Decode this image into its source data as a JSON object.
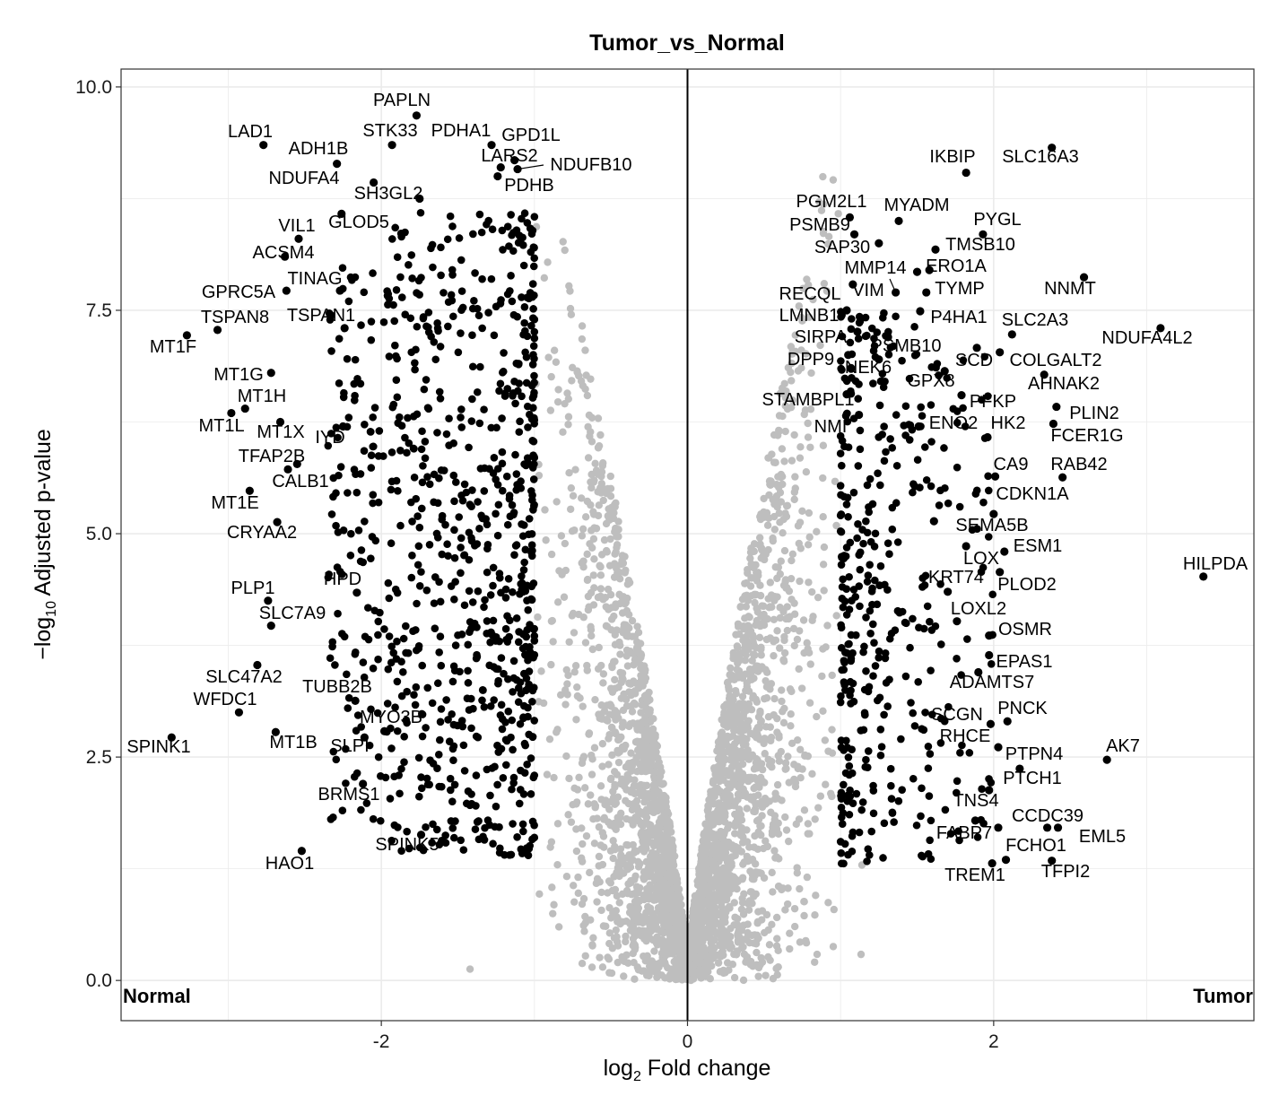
{
  "chart_data": {
    "type": "scatter",
    "title": "Tumor_vs_Normal",
    "xlabel": {
      "prefix": "log",
      "sub": "2",
      "suffix": " Fold change"
    },
    "ylabel": {
      "prefix": "−log",
      "sub": "10",
      "suffix": " Adjusted p-value"
    },
    "xlim": [
      -3.7,
      3.7
    ],
    "ylim": [
      -0.45,
      10.2
    ],
    "x_ticks": [
      -2,
      0,
      2
    ],
    "x_tick_labels": [
      "-2",
      "0",
      "2"
    ],
    "y_ticks": [
      0,
      2.5,
      5,
      7.5,
      10
    ],
    "y_tick_labels": [
      "0.0",
      "2.5",
      "5.0",
      "7.5",
      "10.0"
    ],
    "grid": true,
    "vline_x": 0,
    "corner_labels": {
      "left": "Normal",
      "right": "Tumor"
    },
    "colors": {
      "significant": "#000000",
      "nonsignificant": "#bebebe",
      "grid": "#ebebeb"
    },
    "fold_change_cutoff": 1,
    "labeled_genes": [
      {
        "gene": "PAPLN",
        "x": -1.77,
        "y": 9.68
      },
      {
        "gene": "LAD1",
        "x": -2.77,
        "y": 9.35
      },
      {
        "gene": "STK33",
        "x": -1.93,
        "y": 9.35
      },
      {
        "gene": "PDHA1",
        "x": -1.28,
        "y": 9.35
      },
      {
        "gene": "GPD1L",
        "x": -1.13,
        "y": 9.18
      },
      {
        "gene": "ADH1B",
        "x": -2.29,
        "y": 9.14
      },
      {
        "gene": "LARS2",
        "x": -1.22,
        "y": 9.1
      },
      {
        "gene": "NDUFB10",
        "x": -1.11,
        "y": 9.08
      },
      {
        "gene": "NDUFA4",
        "x": -2.05,
        "y": 8.93
      },
      {
        "gene": "PDHB",
        "x": -1.24,
        "y": 9.0
      },
      {
        "gene": "SH3GL2",
        "x": -1.75,
        "y": 8.75
      },
      {
        "gene": "VIL1",
        "x": -2.54,
        "y": 8.3
      },
      {
        "gene": "GLOD5",
        "x": -2.26,
        "y": 8.58
      },
      {
        "gene": "ACSM4",
        "x": -2.63,
        "y": 8.1
      },
      {
        "gene": "TINAG",
        "x": -2.27,
        "y": 7.72
      },
      {
        "gene": "GPRC5A",
        "x": -2.62,
        "y": 7.72
      },
      {
        "gene": "TSPAN1",
        "x": -2.24,
        "y": 7.3
      },
      {
        "gene": "TSPAN8",
        "x": -3.07,
        "y": 7.28
      },
      {
        "gene": "MT1F",
        "x": -3.27,
        "y": 7.22
      },
      {
        "gene": "MT1G",
        "x": -2.72,
        "y": 6.8
      },
      {
        "gene": "MT1H",
        "x": -2.98,
        "y": 6.35
      },
      {
        "gene": "MT1L",
        "x": -2.89,
        "y": 6.4
      },
      {
        "gene": "MT1X",
        "x": -2.66,
        "y": 6.25
      },
      {
        "gene": "IYD",
        "x": -2.25,
        "y": 6.2
      },
      {
        "gene": "TFAP2B",
        "x": -2.55,
        "y": 5.78
      },
      {
        "gene": "CALB1",
        "x": -2.61,
        "y": 5.72
      },
      {
        "gene": "MT1E",
        "x": -2.86,
        "y": 5.48
      },
      {
        "gene": "CRYAA2",
        "x": -2.68,
        "y": 5.13
      },
      {
        "gene": "HPD",
        "x": -2.16,
        "y": 4.34
      },
      {
        "gene": "PLP1",
        "x": -2.74,
        "y": 4.25
      },
      {
        "gene": "SLC7A9",
        "x": -2.72,
        "y": 3.97
      },
      {
        "gene": "SLC47A2",
        "x": -2.81,
        "y": 3.53
      },
      {
        "gene": "WFDC1",
        "x": -2.93,
        "y": 3.0
      },
      {
        "gene": "TUBB2B",
        "x": -2.17,
        "y": 3.13
      },
      {
        "gene": "MYO3B",
        "x": -1.98,
        "y": 2.79
      },
      {
        "gene": "SPINK1",
        "x": -3.37,
        "y": 2.72
      },
      {
        "gene": "MT1B",
        "x": -2.69,
        "y": 2.78
      },
      {
        "gene": "SLPI",
        "x": -2.11,
        "y": 2.72
      },
      {
        "gene": "BRMS1",
        "x": -2.12,
        "y": 2.2
      },
      {
        "gene": "SPINK5",
        "x": -1.74,
        "y": 1.63
      },
      {
        "gene": "HAO1",
        "x": -2.52,
        "y": 1.45
      },
      {
        "gene": "IKBIP",
        "x": 1.82,
        "y": 9.04
      },
      {
        "gene": "SLC16A3",
        "x": 2.38,
        "y": 9.32
      },
      {
        "gene": "PGM2L1",
        "x": 1.06,
        "y": 8.54
      },
      {
        "gene": "MYADM",
        "x": 1.38,
        "y": 8.5
      },
      {
        "gene": "PSMB9",
        "x": 1.09,
        "y": 8.35
      },
      {
        "gene": "PYGL",
        "x": 1.93,
        "y": 8.35
      },
      {
        "gene": "SAP30",
        "x": 1.25,
        "y": 8.25
      },
      {
        "gene": "TMSB10",
        "x": 1.62,
        "y": 8.18
      },
      {
        "gene": "MMP14",
        "x": 1.5,
        "y": 7.93
      },
      {
        "gene": "ERO1A",
        "x": 1.58,
        "y": 7.95
      },
      {
        "gene": "NNMT",
        "x": 2.59,
        "y": 7.87
      },
      {
        "gene": "RECQL",
        "x": 1.08,
        "y": 7.79
      },
      {
        "gene": "VIM",
        "x": 1.36,
        "y": 7.7
      },
      {
        "gene": "TYMP",
        "x": 1.56,
        "y": 7.7
      },
      {
        "gene": "LMNB1",
        "x": 1.04,
        "y": 7.5
      },
      {
        "gene": "P4HA1",
        "x": 1.52,
        "y": 7.49
      },
      {
        "gene": "SLC2A3",
        "x": 2.12,
        "y": 7.23
      },
      {
        "gene": "NDUFA4L2",
        "x": 3.09,
        "y": 7.3
      },
      {
        "gene": "SIRPA",
        "x": 1.11,
        "y": 7.26
      },
      {
        "gene": "PSMB10",
        "x": 1.31,
        "y": 7.2
      },
      {
        "gene": "DPP9",
        "x": 1.05,
        "y": 7.0
      },
      {
        "gene": "SCD",
        "x": 1.89,
        "y": 7.08
      },
      {
        "gene": "COLGALT2",
        "x": 2.04,
        "y": 7.03
      },
      {
        "gene": "NEK6",
        "x": 1.25,
        "y": 6.95
      },
      {
        "gene": "GPX8",
        "x": 1.68,
        "y": 6.82
      },
      {
        "gene": "AHNAK2",
        "x": 2.33,
        "y": 6.78
      },
      {
        "gene": "STAMBPL1",
        "x": 1.04,
        "y": 6.56
      },
      {
        "gene": "PFKP",
        "x": 1.79,
        "y": 6.55
      },
      {
        "gene": "NMI",
        "x": 1.12,
        "y": 6.33
      },
      {
        "gene": "ENO2",
        "x": 1.51,
        "y": 6.2
      },
      {
        "gene": "HK2",
        "x": 1.96,
        "y": 6.08
      },
      {
        "gene": "PLIN2",
        "x": 2.41,
        "y": 6.42
      },
      {
        "gene": "FCER1G",
        "x": 2.39,
        "y": 6.23
      },
      {
        "gene": "CA9",
        "x": 2.01,
        "y": 5.64
      },
      {
        "gene": "RAB42",
        "x": 2.45,
        "y": 5.63
      },
      {
        "gene": "CDKN1A",
        "x": 2.0,
        "y": 5.22
      },
      {
        "gene": "SEMA5B",
        "x": 1.61,
        "y": 5.14
      },
      {
        "gene": "ESM1",
        "x": 2.07,
        "y": 4.8
      },
      {
        "gene": "LOX",
        "x": 1.82,
        "y": 4.86
      },
      {
        "gene": "KRT74",
        "x": 1.7,
        "y": 4.35
      },
      {
        "gene": "PLOD2",
        "x": 2.04,
        "y": 4.57
      },
      {
        "gene": "HILPDA",
        "x": 3.37,
        "y": 4.52
      },
      {
        "gene": "LOXL2",
        "x": 1.76,
        "y": 4.02
      },
      {
        "gene": "OSMR",
        "x": 1.97,
        "y": 3.86
      },
      {
        "gene": "EPAS1",
        "x": 1.97,
        "y": 3.64
      },
      {
        "gene": "ADAMTS7",
        "x": 1.9,
        "y": 3.45
      },
      {
        "gene": "SCGN",
        "x": 1.98,
        "y": 2.87
      },
      {
        "gene": "PNCK",
        "x": 2.09,
        "y": 2.9
      },
      {
        "gene": "RHCE",
        "x": 2.03,
        "y": 2.61
      },
      {
        "gene": "PTPN4",
        "x": 2.17,
        "y": 2.37
      },
      {
        "gene": "AK7",
        "x": 2.74,
        "y": 2.47
      },
      {
        "gene": "PTCH1",
        "x": 1.97,
        "y": 2.13
      },
      {
        "gene": "TNS4",
        "x": 1.88,
        "y": 1.79
      },
      {
        "gene": "CCDC39",
        "x": 2.35,
        "y": 1.71
      },
      {
        "gene": "FABP7",
        "x": 2.03,
        "y": 1.71
      },
      {
        "gene": "EML5",
        "x": 2.42,
        "y": 1.71
      },
      {
        "gene": "FCHO1",
        "x": 2.08,
        "y": 1.35
      },
      {
        "gene": "TREM1",
        "x": 1.99,
        "y": 1.31
      },
      {
        "gene": "TFPI2",
        "x": 2.38,
        "y": 1.34
      }
    ]
  }
}
